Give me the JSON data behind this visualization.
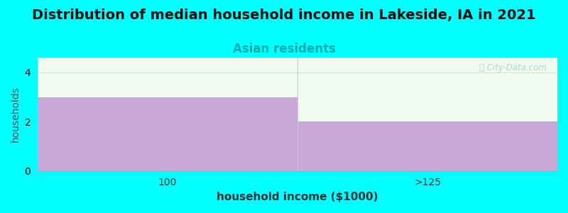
{
  "title": "Distribution of median household income in Lakeside, IA in 2021",
  "subtitle": "Asian residents",
  "xlabel": "household income ($1000)",
  "ylabel": "households",
  "categories": [
    "100",
    ">125"
  ],
  "values": [
    3,
    2
  ],
  "bar_color": "#c8a8d8",
  "background_color": "#00ffff",
  "plot_bg_color": "#f0faf0",
  "title_fontsize": 14,
  "title_fontweight": "bold",
  "subtitle_fontsize": 12,
  "subtitle_color": "#00aaaa",
  "xlabel_fontsize": 11,
  "ylabel_fontsize": 10,
  "tick_fontsize": 10,
  "ylim": [
    0,
    4.6
  ],
  "yticks": [
    0,
    2,
    4
  ],
  "xlim": [
    0,
    2
  ],
  "xtick_positions": [
    0.5,
    1.5
  ],
  "watermark": "ⓘ City-Data.com",
  "watermark_color": "#b0cccc",
  "grid_color": "#d0e8d8",
  "grid_linewidth": 0.8,
  "bar_positions": [
    0.5,
    1.5
  ],
  "bar_width": 1.0
}
